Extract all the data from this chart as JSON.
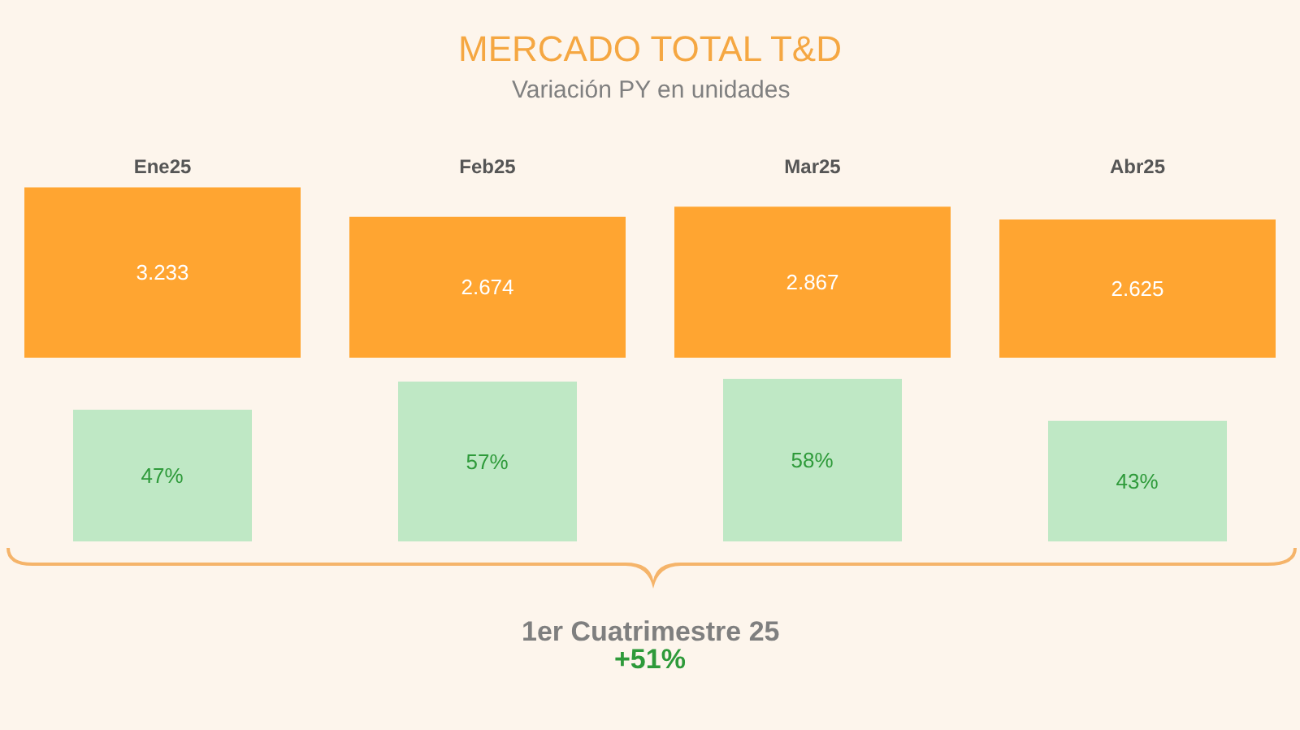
{
  "chart_data": [
    {
      "type": "bar",
      "title": "MERCADO TOTAL T&D",
      "subtitle": "Variación PY en unidades",
      "categories": [
        "Ene25",
        "Feb25",
        "Mar25",
        "Abr25"
      ],
      "values": [
        3233,
        2674,
        2867,
        2625
      ],
      "value_labels": [
        "3.233",
        "2.674",
        "2.867",
        "2.625"
      ],
      "color": "#ffa531",
      "tick_labels": "x",
      "grid": false,
      "legend": false
    },
    {
      "type": "bar",
      "categories": [
        null,
        null,
        null,
        null
      ],
      "values": [
        47,
        57,
        58,
        43
      ],
      "value_labels": [
        "47%",
        "57%",
        "58%",
        "43%"
      ],
      "color": "#bfe8c5",
      "tick_labels": false,
      "grid": false,
      "legend": false,
      "annotations": [
        "1er Cuatrimestre 25",
        "+51%"
      ]
    }
  ]
}
